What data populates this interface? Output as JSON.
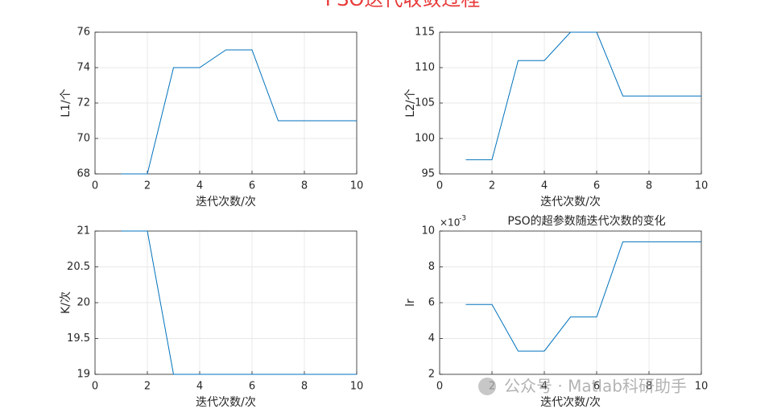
{
  "title": "PSO迭代收敛过程",
  "watermark": "公众号 · Matlab科研助手",
  "chart_data": [
    {
      "type": "line",
      "xlabel": "迭代次数/次",
      "ylabel": "L1/个",
      "x": [
        1,
        2,
        3,
        4,
        5,
        6,
        7,
        8,
        9,
        10
      ],
      "values": [
        68,
        68,
        74,
        74,
        75,
        75,
        71,
        71,
        71,
        71
      ],
      "color": "#0072bd",
      "xlim": [
        0,
        10
      ],
      "xticks": [
        0,
        2,
        4,
        6,
        8,
        10
      ],
      "ylim": [
        68,
        76
      ],
      "yticks": [
        68,
        70,
        72,
        74,
        76
      ],
      "grid": true
    },
    {
      "type": "line",
      "xlabel": "迭代次数/次",
      "ylabel": "L2/个",
      "x": [
        1,
        2,
        3,
        4,
        5,
        6,
        7,
        8,
        9,
        10
      ],
      "values": [
        97,
        97,
        111,
        111,
        115,
        115,
        106,
        106,
        106,
        106
      ],
      "color": "#0072bd",
      "xlim": [
        0,
        10
      ],
      "xticks": [
        0,
        2,
        4,
        6,
        8,
        10
      ],
      "ylim": [
        95,
        115
      ],
      "yticks": [
        95,
        100,
        105,
        110,
        115
      ],
      "grid": true
    },
    {
      "type": "line",
      "xlabel": "迭代次数/次",
      "ylabel": "K/次",
      "x": [
        1,
        2,
        3,
        4,
        5,
        6,
        7,
        8,
        9,
        10
      ],
      "values": [
        21,
        21,
        19,
        19,
        19,
        19,
        19,
        19,
        19,
        19
      ],
      "color": "#0072bd",
      "xlim": [
        0,
        10
      ],
      "xticks": [
        0,
        2,
        4,
        6,
        8,
        10
      ],
      "ylim": [
        19,
        21
      ],
      "yticks": [
        19,
        19.5,
        20,
        20.5,
        21
      ],
      "grid": true
    },
    {
      "type": "line",
      "title": "PSO的超参数随迭代次数的变化",
      "xlabel": "迭代次数/次",
      "ylabel": "lr",
      "y_multiplier": {
        "base": "×10",
        "exponent": "-3"
      },
      "x": [
        1,
        2,
        3,
        4,
        5,
        6,
        7,
        8,
        9,
        10
      ],
      "values": [
        5.9,
        5.9,
        3.3,
        3.3,
        5.2,
        5.2,
        9.4,
        9.4,
        9.4,
        9.4
      ],
      "color": "#0072bd",
      "xlim": [
        0,
        10
      ],
      "xticks": [
        0,
        2,
        4,
        6,
        8,
        10
      ],
      "ylim": [
        2,
        10
      ],
      "yticks": [
        2,
        4,
        6,
        8,
        10
      ],
      "grid": true
    }
  ]
}
